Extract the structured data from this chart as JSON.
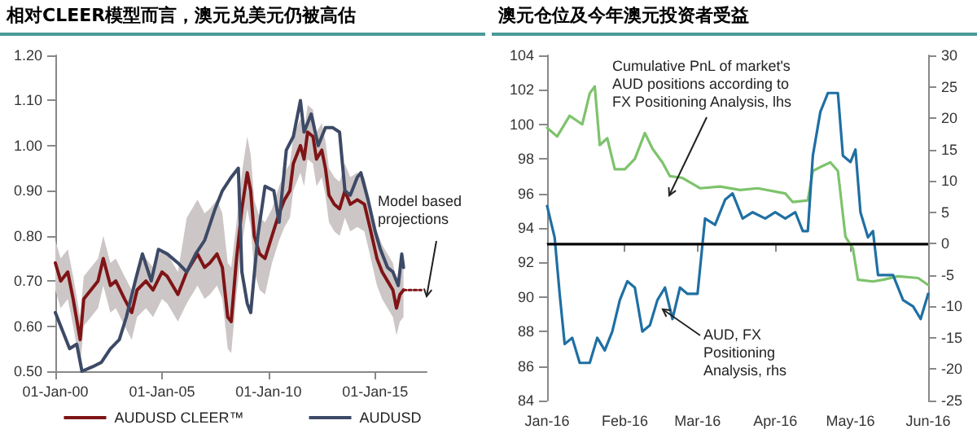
{
  "chart_data": [
    {
      "type": "line",
      "title": "相对CLEER模型而言，澳元兑美元仍被高估",
      "xlim": [
        "2000-01-01",
        "2017-06-01"
      ],
      "xticks": [
        {
          "value": "2000-01-01",
          "label": "01-Jan-00"
        },
        {
          "value": "2005-01-01",
          "label": "01-Jan-05"
        },
        {
          "value": "2010-01-01",
          "label": "01-Jan-10"
        },
        {
          "value": "2015-01-01",
          "label": "01-Jan-15"
        }
      ],
      "ylim": [
        0.5,
        1.2
      ],
      "yticks": [
        {
          "value": 0.5,
          "label": "0.50"
        },
        {
          "value": 0.6,
          "label": "0.60"
        },
        {
          "value": 0.7,
          "label": "0.70"
        },
        {
          "value": 0.8,
          "label": "0.80"
        },
        {
          "value": 0.9,
          "label": "0.90"
        },
        {
          "value": 1.0,
          "label": "1.00"
        },
        {
          "value": 1.1,
          "label": "1.10"
        },
        {
          "value": 1.2,
          "label": "1.20"
        }
      ],
      "legend": "bottom",
      "annotations": [
        "Model based projections"
      ],
      "series": [
        {
          "name": "AUDUSD CLEER™",
          "color": "#7f1416",
          "x": [
            "2000-01",
            "2000-04",
            "2000-08",
            "2000-11",
            "2001-03",
            "2001-05",
            "2001-09",
            "2002-01",
            "2002-04",
            "2002-08",
            "2002-11",
            "2003-04",
            "2003-08",
            "2003-11",
            "2004-04",
            "2004-08",
            "2005-01",
            "2005-04",
            "2005-10",
            "2006-03",
            "2006-09",
            "2007-01",
            "2007-04",
            "2007-08",
            "2007-11",
            "2008-02",
            "2008-04",
            "2008-07",
            "2008-10",
            "2009-01",
            "2009-03",
            "2009-05",
            "2009-08",
            "2009-11",
            "2010-03",
            "2010-07",
            "2010-10",
            "2011-01",
            "2011-03",
            "2011-07",
            "2011-09",
            "2011-11",
            "2012-02",
            "2012-04",
            "2012-07",
            "2012-09",
            "2012-11",
            "2013-02",
            "2013-05",
            "2013-08",
            "2013-11",
            "2014-03",
            "2014-07",
            "2014-10",
            "2015-02",
            "2015-05",
            "2015-08",
            "2015-11",
            "2016-01",
            "2016-03",
            "2016-05"
          ],
          "values": [
            0.74,
            0.7,
            0.72,
            0.66,
            0.57,
            0.66,
            0.68,
            0.7,
            0.75,
            0.69,
            0.7,
            0.66,
            0.63,
            0.68,
            0.7,
            0.68,
            0.72,
            0.71,
            0.67,
            0.72,
            0.76,
            0.73,
            0.74,
            0.76,
            0.73,
            0.62,
            0.61,
            0.75,
            0.86,
            0.94,
            0.9,
            0.8,
            0.76,
            0.75,
            0.8,
            0.85,
            0.88,
            0.9,
            0.96,
            1.0,
            0.97,
            1.03,
            1.02,
            0.97,
            0.99,
            0.95,
            0.89,
            0.87,
            0.86,
            0.9,
            0.87,
            0.88,
            0.87,
            0.82,
            0.75,
            0.72,
            0.7,
            0.68,
            0.64,
            0.67,
            0.68
          ],
          "lower": [
            0.68,
            0.64,
            0.66,
            0.6,
            0.51,
            0.6,
            0.62,
            0.64,
            0.69,
            0.63,
            0.64,
            0.6,
            0.57,
            0.62,
            0.64,
            0.62,
            0.66,
            0.65,
            0.61,
            0.65,
            0.69,
            0.66,
            0.67,
            0.69,
            0.66,
            0.55,
            0.54,
            0.67,
            0.78,
            0.86,
            0.82,
            0.72,
            0.68,
            0.67,
            0.74,
            0.79,
            0.82,
            0.84,
            0.9,
            0.94,
            0.91,
            0.97,
            0.96,
            0.91,
            0.93,
            0.89,
            0.83,
            0.81,
            0.8,
            0.84,
            0.81,
            0.82,
            0.81,
            0.76,
            0.69,
            0.66,
            0.64,
            0.62,
            0.58,
            0.61,
            0.62
          ],
          "upper": [
            0.79,
            0.75,
            0.77,
            0.71,
            0.62,
            0.71,
            0.73,
            0.75,
            0.8,
            0.74,
            0.75,
            0.71,
            0.68,
            0.73,
            0.75,
            0.73,
            0.77,
            0.76,
            0.72,
            0.84,
            0.88,
            0.85,
            0.86,
            0.88,
            0.85,
            0.74,
            0.73,
            0.83,
            0.94,
            1.02,
            0.98,
            0.88,
            0.84,
            0.83,
            0.86,
            0.91,
            0.94,
            0.96,
            1.02,
            1.06,
            1.03,
            1.09,
            1.08,
            1.03,
            1.05,
            1.01,
            0.95,
            0.93,
            0.92,
            0.96,
            0.93,
            0.94,
            0.93,
            0.88,
            0.81,
            0.78,
            0.76,
            0.74,
            0.7,
            0.73,
            0.74
          ]
        },
        {
          "color": "#7f1416",
          "line_style": "dotted",
          "x": [
            "2016-05",
            "2017-03"
          ],
          "values": [
            0.68,
            0.68
          ]
        },
        {
          "name": "AUDUSD",
          "color": "#3d4a66",
          "x": [
            "2000-01",
            "2000-04",
            "2000-09",
            "2001-01",
            "2001-04",
            "2001-10",
            "2002-03",
            "2002-08",
            "2003-01",
            "2003-05",
            "2003-10",
            "2004-02",
            "2004-07",
            "2004-11",
            "2005-04",
            "2005-10",
            "2006-03",
            "2006-08",
            "2007-01",
            "2007-07",
            "2007-11",
            "2008-04",
            "2008-08",
            "2008-10",
            "2009-01",
            "2009-03",
            "2009-07",
            "2009-11",
            "2010-04",
            "2010-07",
            "2010-11",
            "2011-03",
            "2011-07",
            "2011-09",
            "2012-01",
            "2012-05",
            "2012-09",
            "2013-01",
            "2013-05",
            "2013-08",
            "2013-11",
            "2014-03",
            "2014-05",
            "2014-09",
            "2015-01",
            "2015-04",
            "2015-08",
            "2015-11",
            "2016-02",
            "2016-04",
            "2016-05"
          ],
          "values": [
            0.63,
            0.6,
            0.55,
            0.56,
            0.5,
            0.51,
            0.52,
            0.55,
            0.57,
            0.62,
            0.7,
            0.76,
            0.7,
            0.77,
            0.76,
            0.74,
            0.72,
            0.76,
            0.79,
            0.86,
            0.9,
            0.93,
            0.95,
            0.72,
            0.65,
            0.63,
            0.8,
            0.91,
            0.9,
            0.83,
            0.99,
            1.02,
            1.1,
            1.03,
            1.07,
            1.0,
            1.04,
            1.04,
            1.03,
            0.9,
            0.89,
            0.93,
            0.94,
            0.88,
            0.81,
            0.77,
            0.73,
            0.72,
            0.69,
            0.76,
            0.73
          ]
        }
      ]
    },
    {
      "type": "line",
      "title": "澳元仓位及今年澳元投资者受益",
      "xlim": [
        "2016-01-01",
        "2016-06-01"
      ],
      "xticks": [
        {
          "value": "2016-01-01",
          "label": "Jan-16"
        },
        {
          "value": "2016-02-01",
          "label": "Feb-16"
        },
        {
          "value": "2016-03-01",
          "label": "Mar-16"
        },
        {
          "value": "2016-04-01",
          "label": "Apr-16"
        },
        {
          "value": "2016-05-01",
          "label": "May-16"
        },
        {
          "value": "2016-06-01",
          "label": "Jun-16"
        }
      ],
      "ylim": [
        84,
        104
      ],
      "yticks": [
        84,
        86,
        88,
        90,
        92,
        94,
        96,
        98,
        100,
        102,
        104
      ],
      "y2lim": [
        -25,
        30
      ],
      "y2ticks": [
        -25,
        -20,
        -15,
        -10,
        -5,
        0,
        5,
        10,
        15,
        20,
        25,
        30
      ],
      "ref_lines": [
        {
          "axis": "y2",
          "value": 0,
          "color": "#000000"
        }
      ],
      "annotations": [
        "Cumulative PnL of market's AUD positions according to FX Positioning Analysis, lhs",
        "AUD, FX Positioning Analysis, rhs"
      ],
      "series": [
        {
          "color": "#7dc36b",
          "x": [
            "2016-01-01",
            "2016-01-05",
            "2016-01-10",
            "2016-01-15",
            "2016-01-18",
            "2016-01-20",
            "2016-01-22",
            "2016-01-25",
            "2016-01-28",
            "2016-02-01",
            "2016-02-05",
            "2016-02-09",
            "2016-02-12",
            "2016-02-16",
            "2016-02-19",
            "2016-02-24",
            "2016-03-02",
            "2016-03-10",
            "2016-03-18",
            "2016-03-25",
            "2016-04-05",
            "2016-04-08",
            "2016-04-14",
            "2016-04-16",
            "2016-04-20",
            "2016-04-23",
            "2016-04-26",
            "2016-04-29",
            "2016-05-02",
            "2016-05-04",
            "2016-05-10",
            "2016-05-14",
            "2016-05-20",
            "2016-05-28",
            "2016-06-01"
          ],
          "values": [
            99.8,
            99.3,
            100.5,
            100.0,
            101.8,
            102.2,
            98.8,
            99.2,
            97.4,
            97.4,
            98.0,
            99.5,
            98.6,
            97.8,
            97.0,
            96.9,
            96.3,
            96.4,
            96.2,
            96.3,
            96.0,
            95.5,
            95.6,
            97.3,
            97.6,
            97.8,
            97.3,
            93.5,
            92.8,
            91.0,
            90.9,
            91.0,
            91.2,
            91.1,
            90.7
          ]
        },
        {
          "color": "#1f6fa3",
          "axis": "y2",
          "x": [
            "2016-01-01",
            "2016-01-04",
            "2016-01-06",
            "2016-01-08",
            "2016-01-11",
            "2016-01-14",
            "2016-01-18",
            "2016-01-21",
            "2016-01-24",
            "2016-01-27",
            "2016-01-30",
            "2016-02-02",
            "2016-02-05",
            "2016-02-08",
            "2016-02-11",
            "2016-02-14",
            "2016-02-17",
            "2016-02-20",
            "2016-02-23",
            "2016-02-26",
            "2016-03-01",
            "2016-03-04",
            "2016-03-08",
            "2016-03-12",
            "2016-03-15",
            "2016-03-19",
            "2016-03-23",
            "2016-03-28",
            "2016-04-01",
            "2016-04-05",
            "2016-04-09",
            "2016-04-12",
            "2016-04-14",
            "2016-04-16",
            "2016-04-19",
            "2016-04-22",
            "2016-04-26",
            "2016-04-28",
            "2016-05-01",
            "2016-05-03",
            "2016-05-05",
            "2016-05-08",
            "2016-05-10",
            "2016-05-12",
            "2016-05-18",
            "2016-05-22",
            "2016-05-26",
            "2016-05-29",
            "2016-06-01"
          ],
          "values": [
            6,
            1,
            -8,
            -16,
            -15,
            -19,
            -19,
            -15,
            -17,
            -14,
            -9,
            -6,
            -7,
            -14,
            -13,
            -9,
            -7,
            -12,
            -7,
            -8,
            -8,
            4,
            3,
            7,
            8,
            4,
            5,
            4,
            5,
            4,
            5,
            2,
            2,
            14,
            21,
            24,
            24,
            14,
            13,
            15,
            5,
            1,
            2,
            -5,
            -5,
            -9,
            -10,
            -12,
            -8
          ]
        }
      ]
    }
  ]
}
